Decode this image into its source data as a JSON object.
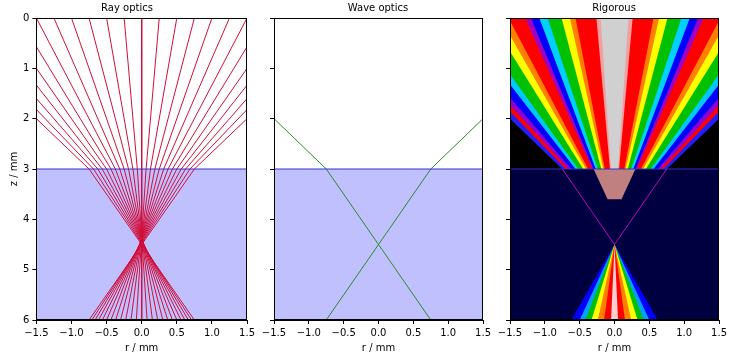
{
  "chart_data": [
    {
      "type": "line",
      "title": "Ray optics",
      "x_label": "r / mm",
      "y_label": "z / mm",
      "xlim": [
        -1.5,
        1.5
      ],
      "ylim": [
        6,
        0
      ],
      "xticks": [
        {
          "value": -1.5,
          "label": "−1.5"
        },
        {
          "value": -1,
          "label": "−1.0"
        },
        {
          "value": -0.5,
          "label": "−0.5"
        },
        {
          "value": 0,
          "label": "0.0"
        },
        0.5,
        {
          "value": 1,
          "label": "1.0"
        },
        1.5
      ],
      "yticks": [
        0,
        1,
        2,
        3,
        4,
        5,
        6
      ],
      "grid": false,
      "color": "#d0103a",
      "regions": [
        {
          "color": "#c0c0ff",
          "x": [
            -1.5,
            1.5,
            1.5,
            -1.5
          ],
          "values": [
            3,
            3,
            6,
            6
          ]
        }
      ],
      "series": [
        {
          "color": "#3333cc",
          "x": [
            -1.5,
            1.5
          ],
          "values": [
            3,
            3
          ]
        },
        {
          "x": [
            0,
            0,
            0
          ],
          "values": [
            0,
            3,
            6
          ]
        },
        {
          "x": [
            -0.25,
            -0.0625,
            0.077
          ],
          "values": [
            0,
            3,
            6
          ]
        },
        {
          "x": [
            -0.5,
            -0.125,
            0.153
          ],
          "values": [
            0,
            3,
            6
          ]
        },
        {
          "x": [
            -0.75,
            -0.1875,
            0.228
          ],
          "values": [
            0,
            3,
            6
          ]
        },
        {
          "x": [
            -1.0,
            -0.25,
            0.301
          ],
          "values": [
            0,
            3,
            6
          ]
        },
        {
          "x": [
            -1.25,
            -0.3125,
            0.371
          ],
          "values": [
            0,
            3,
            6
          ]
        },
        {
          "x": [
            -1.5,
            -0.375,
            0.438
          ],
          "values": [
            0,
            3,
            6
          ]
        },
        {
          "x": [
            -1.5,
            -0.4375,
            0.501
          ],
          "values": [
            0.571,
            3,
            6
          ]
        },
        {
          "x": [
            -1.5,
            -0.5,
            0.56
          ],
          "values": [
            1.0,
            3,
            6
          ]
        },
        {
          "x": [
            -1.5,
            -0.5625,
            0.615
          ],
          "values": [
            1.333,
            3,
            6
          ]
        },
        {
          "x": [
            -1.5,
            -0.625,
            0.665
          ],
          "values": [
            1.6,
            3,
            6
          ]
        },
        {
          "x": [
            -1.5,
            -0.6875,
            0.71
          ],
          "values": [
            1.818,
            3,
            6
          ]
        },
        {
          "x": [
            -1.5,
            -0.75,
            0.75
          ],
          "values": [
            2,
            3,
            6
          ]
        },
        {
          "x": [
            0.25,
            0.0625,
            -0.077
          ],
          "values": [
            0,
            3,
            6
          ]
        },
        {
          "x": [
            0.5,
            0.125,
            -0.153
          ],
          "values": [
            0,
            3,
            6
          ]
        },
        {
          "x": [
            0.75,
            0.1875,
            -0.228
          ],
          "values": [
            0,
            3,
            6
          ]
        },
        {
          "x": [
            1.0,
            0.25,
            -0.301
          ],
          "values": [
            0,
            3,
            6
          ]
        },
        {
          "x": [
            1.25,
            0.3125,
            -0.371
          ],
          "values": [
            0,
            3,
            6
          ]
        },
        {
          "x": [
            1.5,
            0.375,
            -0.438
          ],
          "values": [
            0,
            3,
            6
          ]
        },
        {
          "x": [
            1.5,
            0.4375,
            -0.501
          ],
          "values": [
            0.571,
            3,
            6
          ]
        },
        {
          "x": [
            1.5,
            0.5,
            -0.56
          ],
          "values": [
            1.0,
            3,
            6
          ]
        },
        {
          "x": [
            1.5,
            0.5625,
            -0.615
          ],
          "values": [
            1.333,
            3,
            6
          ]
        },
        {
          "x": [
            1.5,
            0.625,
            -0.665
          ],
          "values": [
            1.6,
            3,
            6
          ]
        },
        {
          "x": [
            1.5,
            0.6875,
            -0.71
          ],
          "values": [
            1.818,
            3,
            6
          ]
        },
        {
          "x": [
            1.5,
            0.75,
            -0.75
          ],
          "values": [
            2,
            3,
            6
          ]
        }
      ]
    },
    {
      "type": "line",
      "title": "Wave optics",
      "x_label": "r / mm",
      "xlim": [
        -1.5,
        1.5
      ],
      "ylim": [
        6,
        0
      ],
      "xticks": [
        {
          "value": -1.5,
          "label": "−1.5"
        },
        {
          "value": -1,
          "label": "−1.0"
        },
        {
          "value": -0.5,
          "label": "−0.5"
        },
        {
          "value": 0,
          "label": "0.0"
        },
        0.5,
        {
          "value": 1,
          "label": "1.0"
        },
        1.5
      ],
      "yticks": [
        0,
        1,
        2,
        3,
        4,
        5,
        6
      ],
      "grid": false,
      "tick_labels": "x",
      "color": "#2a8a2a",
      "regions": [
        {
          "color": "#c0c0ff",
          "x": [
            -1.5,
            1.5,
            1.5,
            -1.5
          ],
          "values": [
            3,
            3,
            6,
            6
          ]
        }
      ],
      "series": [
        {
          "color": "#3333cc",
          "x": [
            -1.5,
            1.5
          ],
          "values": [
            3,
            3
          ]
        },
        {
          "x": [
            -1.5,
            -0.75,
            0.75
          ],
          "values": [
            2,
            3,
            6
          ]
        },
        {
          "x": [
            1.5,
            0.75,
            -0.75
          ],
          "values": [
            2,
            3,
            6
          ]
        }
      ]
    },
    {
      "type": "line",
      "title": "Rigorous",
      "x_label": "r / mm",
      "xlim": [
        -1.5,
        1.5
      ],
      "ylim": [
        6,
        0
      ],
      "xticks": [
        {
          "value": -1.5,
          "label": "−1.5"
        },
        {
          "value": -1,
          "label": "−1.0"
        },
        {
          "value": -0.5,
          "label": "−0.5"
        },
        {
          "value": 0,
          "label": "0.0"
        },
        0.5,
        {
          "value": 1,
          "label": "1.0"
        },
        1.5
      ],
      "yticks": [
        0,
        1,
        2,
        3,
        4,
        5,
        6
      ],
      "grid": false,
      "tick_labels": "x",
      "color": "#c000c0",
      "regions": [
        {
          "color": "#000000",
          "x": [
            -1.5,
            1.5,
            1.5,
            -1.5
          ],
          "values": [
            0,
            0,
            3,
            3
          ]
        },
        {
          "color": "#000040",
          "x": [
            -1.5,
            1.5,
            1.5,
            -1.5
          ],
          "values": [
            3,
            3,
            6,
            6
          ]
        },
        {
          "color": "#2020ff",
          "x": [
            -3,
            3,
            0.75,
            -0.75
          ],
          "values": [
            0,
            0,
            3,
            3
          ]
        },
        {
          "color": "#ff0000",
          "x": [
            -2.8,
            2.8,
            0.7,
            -0.7
          ],
          "values": [
            0,
            0,
            3,
            3
          ]
        },
        {
          "color": "#9000d0",
          "x": [
            -2.64,
            2.64,
            0.66,
            -0.66
          ],
          "values": [
            0,
            0,
            3,
            3
          ]
        },
        {
          "color": "#0000ff",
          "x": [
            -2.48,
            2.48,
            0.62,
            -0.62
          ],
          "values": [
            0,
            0,
            3,
            3
          ]
        },
        {
          "color": "#00c8ff",
          "x": [
            -2.24,
            2.24,
            0.56,
            -0.56
          ],
          "values": [
            0,
            0,
            3,
            3
          ]
        },
        {
          "color": "#00c000",
          "x": [
            -2.08,
            2.08,
            0.52,
            -0.52
          ],
          "values": [
            0,
            0,
            3,
            3
          ]
        },
        {
          "color": "#ffff00",
          "x": [
            -1.8,
            1.8,
            0.45,
            -0.45
          ],
          "values": [
            0,
            0,
            3,
            3
          ]
        },
        {
          "color": "#ff8000",
          "x": [
            -1.64,
            1.64,
            0.41,
            -0.41
          ],
          "values": [
            0,
            0,
            3,
            3
          ]
        },
        {
          "color": "#ff0000",
          "x": [
            -1.52,
            1.52,
            0.38,
            -0.38
          ],
          "values": [
            0,
            0,
            3,
            3
          ]
        },
        {
          "color": "#a000c0",
          "x": [
            -1.28,
            1.28,
            0.32,
            -0.32
          ],
          "values": [
            0,
            0,
            3,
            3
          ]
        },
        {
          "color": "#0000ff",
          "x": [
            -1.2,
            1.2,
            0.3,
            -0.3
          ],
          "values": [
            0,
            0,
            3,
            3
          ]
        },
        {
          "color": "#00d0ff",
          "x": [
            -1.08,
            1.08,
            0.27,
            -0.27
          ],
          "values": [
            0,
            0,
            3,
            3
          ]
        },
        {
          "color": "#00c000",
          "x": [
            -0.96,
            0.96,
            0.24,
            -0.24
          ],
          "values": [
            0,
            0,
            3,
            3
          ]
        },
        {
          "color": "#ffff00",
          "x": [
            -0.76,
            0.76,
            0.19,
            -0.19
          ],
          "values": [
            0,
            0,
            3,
            3
          ]
        },
        {
          "color": "#ff8000",
          "x": [
            -0.64,
            0.64,
            0.16,
            -0.16
          ],
          "values": [
            0,
            0,
            3,
            3
          ]
        },
        {
          "color": "#ff0000",
          "x": [
            -0.56,
            0.56,
            0.14,
            -0.14
          ],
          "values": [
            0,
            0,
            3,
            3
          ]
        },
        {
          "color": "#f0a0a0",
          "x": [
            -0.26,
            0.26,
            0.065,
            -0.065
          ],
          "values": [
            0,
            0,
            3,
            3
          ]
        },
        {
          "color": "#d0d0d0",
          "x": [
            -0.2,
            0.2,
            0.05,
            -0.05
          ],
          "values": [
            0,
            0,
            3,
            3
          ]
        },
        {
          "color": "#c08080",
          "x": [
            -0.3,
            0.3,
            0.1,
            -0.1
          ],
          "values": [
            3,
            3,
            3.6,
            3.6
          ]
        },
        {
          "color": "#0000ff",
          "x": [
            0,
            0.62,
            -0.62
          ],
          "values": [
            4.5,
            6,
            6
          ]
        },
        {
          "color": "#00a0ff",
          "x": [
            0,
            0.5,
            -0.5
          ],
          "values": [
            4.5,
            6,
            6
          ]
        },
        {
          "color": "#00c000",
          "x": [
            0,
            0.42,
            -0.42
          ],
          "values": [
            4.5,
            6,
            6
          ]
        },
        {
          "color": "#ffff00",
          "x": [
            0,
            0.33,
            -0.33
          ],
          "values": [
            4.5,
            6,
            6
          ]
        },
        {
          "color": "#ff8000",
          "x": [
            0,
            0.24,
            -0.24
          ],
          "values": [
            4.5,
            6,
            6
          ]
        },
        {
          "color": "#ff0000",
          "x": [
            0,
            0.15,
            -0.15
          ],
          "values": [
            4.5,
            6,
            6
          ]
        },
        {
          "color": "#ffd0d0",
          "x": [
            0,
            0.05,
            -0.05
          ],
          "values": [
            4.5,
            6,
            6
          ]
        }
      ],
      "series": [
        {
          "color": "#3333cc",
          "x": [
            -1.5,
            1.5
          ],
          "values": [
            3,
            3
          ]
        },
        {
          "x": [
            -0.75,
            0
          ],
          "values": [
            3,
            4.5
          ]
        },
        {
          "x": [
            0.75,
            0
          ],
          "values": [
            3,
            4.5
          ]
        }
      ]
    }
  ]
}
